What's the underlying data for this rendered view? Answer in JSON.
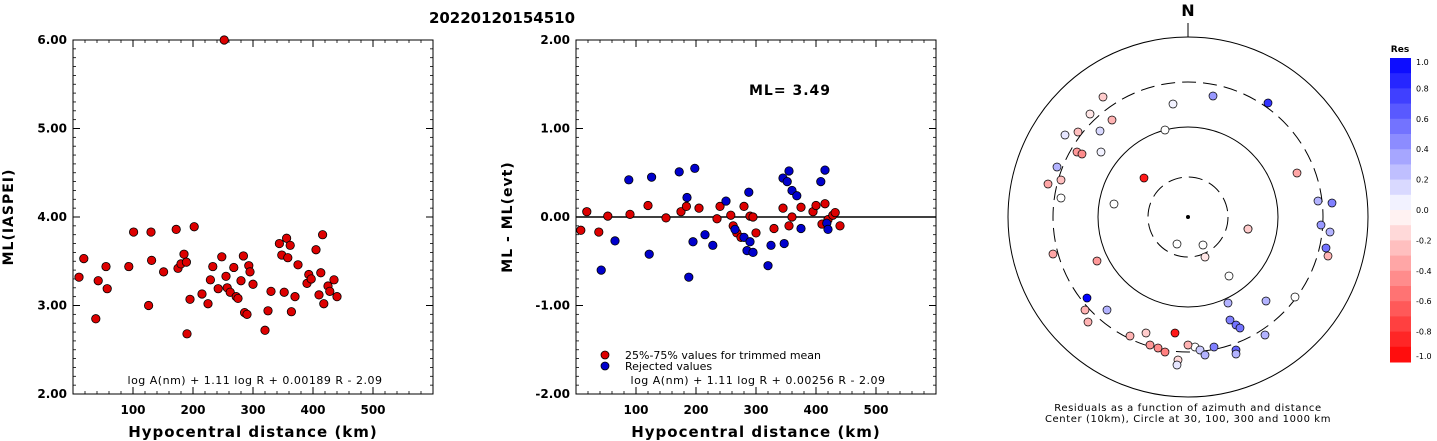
{
  "event_id": "20220120154510",
  "chart_data": [
    {
      "type": "scatter",
      "panel": "ml-vs-distance",
      "xlabel": "Hypocentral distance (km)",
      "ylabel": "ML(IASPEI)",
      "xlim": [
        0,
        600
      ],
      "ylim": [
        2.0,
        6.0
      ],
      "xticks": [
        "100",
        "200",
        "300",
        "400",
        "500"
      ],
      "yticks": [
        "2.00",
        "3.00",
        "4.00",
        "5.00",
        "6.00"
      ],
      "formula": "log A(nm) + 1.11 log R + 0.00189 R - 2.09",
      "color": "#dd0000",
      "points": [
        [
          10,
          3.32
        ],
        [
          18,
          3.53
        ],
        [
          38,
          2.85
        ],
        [
          42,
          3.28
        ],
        [
          55,
          3.44
        ],
        [
          57,
          3.19
        ],
        [
          93,
          3.44
        ],
        [
          101,
          3.83
        ],
        [
          126,
          3.0
        ],
        [
          130,
          3.83
        ],
        [
          131,
          3.51
        ],
        [
          151,
          3.38
        ],
        [
          172,
          3.86
        ],
        [
          175,
          3.42
        ],
        [
          180,
          3.47
        ],
        [
          185,
          3.58
        ],
        [
          189,
          3.49
        ],
        [
          190,
          2.68
        ],
        [
          195,
          3.07
        ],
        [
          202,
          3.89
        ],
        [
          215,
          3.13
        ],
        [
          225,
          3.02
        ],
        [
          229,
          3.29
        ],
        [
          233,
          3.44
        ],
        [
          242,
          3.19
        ],
        [
          248,
          3.55
        ],
        [
          252,
          6.0
        ],
        [
          255,
          3.33
        ],
        [
          257,
          3.2
        ],
        [
          262,
          3.15
        ],
        [
          268,
          3.43
        ],
        [
          272,
          3.1
        ],
        [
          275,
          3.08
        ],
        [
          280,
          3.28
        ],
        [
          284,
          3.56
        ],
        [
          286,
          2.92
        ],
        [
          290,
          2.9
        ],
        [
          293,
          3.45
        ],
        [
          295,
          3.38
        ],
        [
          300,
          3.24
        ],
        [
          320,
          2.72
        ],
        [
          325,
          2.94
        ],
        [
          330,
          3.16
        ],
        [
          344,
          3.7
        ],
        [
          348,
          3.57
        ],
        [
          352,
          3.15
        ],
        [
          356,
          3.76
        ],
        [
          358,
          3.54
        ],
        [
          362,
          3.68
        ],
        [
          364,
          2.93
        ],
        [
          370,
          3.1
        ],
        [
          375,
          3.46
        ],
        [
          390,
          3.25
        ],
        [
          393,
          3.35
        ],
        [
          397,
          3.3
        ],
        [
          405,
          3.63
        ],
        [
          410,
          3.12
        ],
        [
          413,
          3.37
        ],
        [
          416,
          3.8
        ],
        [
          418,
          3.02
        ],
        [
          425,
          3.22
        ],
        [
          428,
          3.16
        ],
        [
          435,
          3.29
        ],
        [
          440,
          3.1
        ]
      ]
    },
    {
      "type": "scatter",
      "panel": "residual-vs-distance",
      "xlabel": "Hypocentral distance (km)",
      "ylabel": "ML - ML(evt)",
      "annotation": "ML= 3.49",
      "xlim": [
        0,
        600
      ],
      "ylim": [
        -2.0,
        2.0
      ],
      "xticks": [
        "100",
        "200",
        "300",
        "400",
        "500"
      ],
      "yticks": [
        "-2.00",
        "-1.00",
        "0.00",
        "1.00",
        "2.00"
      ],
      "formula": "log A(nm) + 1.11 log R + 0.00256 R - 2.09",
      "legend": [
        {
          "label": "25%-75% values for trimmed mean",
          "color": "#dd0000"
        },
        {
          "label": "Rejected values",
          "color": "#0000cc"
        }
      ],
      "series": [
        {
          "name": "25%-75% values for trimmed mean",
          "color": "#dd0000",
          "points": [
            [
              8,
              -0.15
            ],
            [
              18,
              0.06
            ],
            [
              38,
              -0.17
            ],
            [
              53,
              0.01
            ],
            [
              90,
              0.03
            ],
            [
              120,
              0.13
            ],
            [
              150,
              -0.01
            ],
            [
              175,
              0.06
            ],
            [
              184,
              0.12
            ],
            [
              205,
              0.1
            ],
            [
              235,
              -0.02
            ],
            [
              240,
              0.12
            ],
            [
              258,
              0.02
            ],
            [
              262,
              -0.1
            ],
            [
              268,
              -0.18
            ],
            [
              275,
              -0.23
            ],
            [
              280,
              0.12
            ],
            [
              290,
              0.01
            ],
            [
              295,
              0.0
            ],
            [
              300,
              -0.18
            ],
            [
              330,
              -0.13
            ],
            [
              345,
              0.1
            ],
            [
              355,
              -0.1
            ],
            [
              360,
              0.0
            ],
            [
              375,
              0.11
            ],
            [
              395,
              0.06
            ],
            [
              400,
              0.13
            ],
            [
              410,
              -0.08
            ],
            [
              415,
              0.15
            ],
            [
              420,
              -0.03
            ],
            [
              428,
              0.02
            ],
            [
              432,
              0.05
            ],
            [
              440,
              -0.1
            ]
          ]
        },
        {
          "name": "Rejected values",
          "color": "#0000cc",
          "points": [
            [
              42,
              -0.6
            ],
            [
              65,
              -0.27
            ],
            [
              88,
              0.42
            ],
            [
              122,
              -0.42
            ],
            [
              126,
              0.45
            ],
            [
              172,
              0.51
            ],
            [
              185,
              0.22
            ],
            [
              188,
              -0.68
            ],
            [
              195,
              -0.28
            ],
            [
              198,
              0.55
            ],
            [
              215,
              -0.2
            ],
            [
              228,
              -0.32
            ],
            [
              250,
              0.18
            ],
            [
              265,
              -0.14
            ],
            [
              280,
              -0.23
            ],
            [
              285,
              -0.38
            ],
            [
              288,
              0.28
            ],
            [
              290,
              -0.28
            ],
            [
              295,
              -0.4
            ],
            [
              320,
              -0.55
            ],
            [
              325,
              -0.32
            ],
            [
              345,
              0.44
            ],
            [
              347,
              -0.3
            ],
            [
              352,
              0.4
            ],
            [
              355,
              0.52
            ],
            [
              360,
              0.3
            ],
            [
              368,
              0.24
            ],
            [
              375,
              -0.13
            ],
            [
              408,
              0.4
            ],
            [
              415,
              0.53
            ],
            [
              418,
              -0.07
            ],
            [
              420,
              -0.14
            ]
          ]
        }
      ]
    },
    {
      "type": "scatter",
      "panel": "azimuth-distance-polar",
      "north_label": "N",
      "caption_line1": "Residuals as a function of azimuth and distance",
      "caption_line2": "Center (10km), Circle at 30, 100, 300 and 1000 km",
      "colorbar_title": "Res",
      "colorbar_ticks": [
        "1.0",
        "0.8",
        "0.6",
        "0.4",
        "0.2",
        "0.0",
        "-0.2",
        "-0.4",
        "-0.6",
        "-0.8",
        "-1.0"
      ],
      "stations": [
        [
          1103,
          97,
          -0.2
        ],
        [
          1173,
          104,
          0.05
        ],
        [
          1213,
          96,
          0.4
        ],
        [
          1268,
          103,
          0.8
        ],
        [
          1090,
          114,
          -0.1
        ],
        [
          1112,
          120,
          -0.3
        ],
        [
          1065,
          135,
          0.1
        ],
        [
          1078,
          132,
          -0.25
        ],
        [
          1100,
          131,
          0.15
        ],
        [
          1077,
          152,
          -0.4
        ],
        [
          1082,
          154,
          -0.45
        ],
        [
          1101,
          152,
          0.05
        ],
        [
          1165,
          130,
          0.0
        ],
        [
          1057,
          167,
          0.3
        ],
        [
          1061,
          180,
          -0.25
        ],
        [
          1048,
          184,
          -0.35
        ],
        [
          1144,
          178,
          -0.9
        ],
        [
          1061,
          198,
          0.0
        ],
        [
          1114,
          204,
          0.0
        ],
        [
          1297,
          173,
          -0.35
        ],
        [
          1318,
          201,
          0.3
        ],
        [
          1332,
          203,
          0.5
        ],
        [
          1321,
          225,
          0.4
        ],
        [
          1330,
          232,
          0.3
        ],
        [
          1326,
          248,
          0.55
        ],
        [
          1328,
          256,
          -0.3
        ],
        [
          1248,
          229,
          -0.35
        ],
        [
          1203,
          245,
          0.0
        ],
        [
          1053,
          254,
          -0.35
        ],
        [
          1097,
          261,
          -0.4
        ],
        [
          1229,
          276,
          0.0
        ],
        [
          1087,
          298,
          1.0
        ],
        [
          1295,
          297,
          0.0
        ],
        [
          1085,
          310,
          -0.3
        ],
        [
          1107,
          310,
          0.3
        ],
        [
          1228,
          303,
          0.3
        ],
        [
          1266,
          301,
          0.3
        ],
        [
          1088,
          322,
          -0.3
        ],
        [
          1230,
          320,
          0.5
        ],
        [
          1236,
          325,
          0.55
        ],
        [
          1240,
          328,
          0.55
        ],
        [
          1130,
          336,
          -0.3
        ],
        [
          1146,
          333,
          -0.2
        ],
        [
          1265,
          335,
          0.3
        ],
        [
          1175,
          333,
          -0.9
        ],
        [
          1150,
          345,
          -0.4
        ],
        [
          1158,
          348,
          -0.45
        ],
        [
          1165,
          352,
          -0.5
        ],
        [
          1195,
          347,
          0.0
        ],
        [
          1188,
          345,
          -0.3
        ],
        [
          1200,
          350,
          0.2
        ],
        [
          1214,
          347,
          0.5
        ],
        [
          1236,
          350,
          0.6
        ],
        [
          1178,
          360,
          -0.15
        ],
        [
          1205,
          355,
          0.3
        ],
        [
          1177,
          365,
          0.1
        ],
        [
          1236,
          354,
          0.3
        ],
        [
          1205,
          257,
          -0.1
        ],
        [
          1248,
          229,
          -0.2
        ],
        [
          1177,
          244,
          0.0
        ]
      ]
    }
  ]
}
